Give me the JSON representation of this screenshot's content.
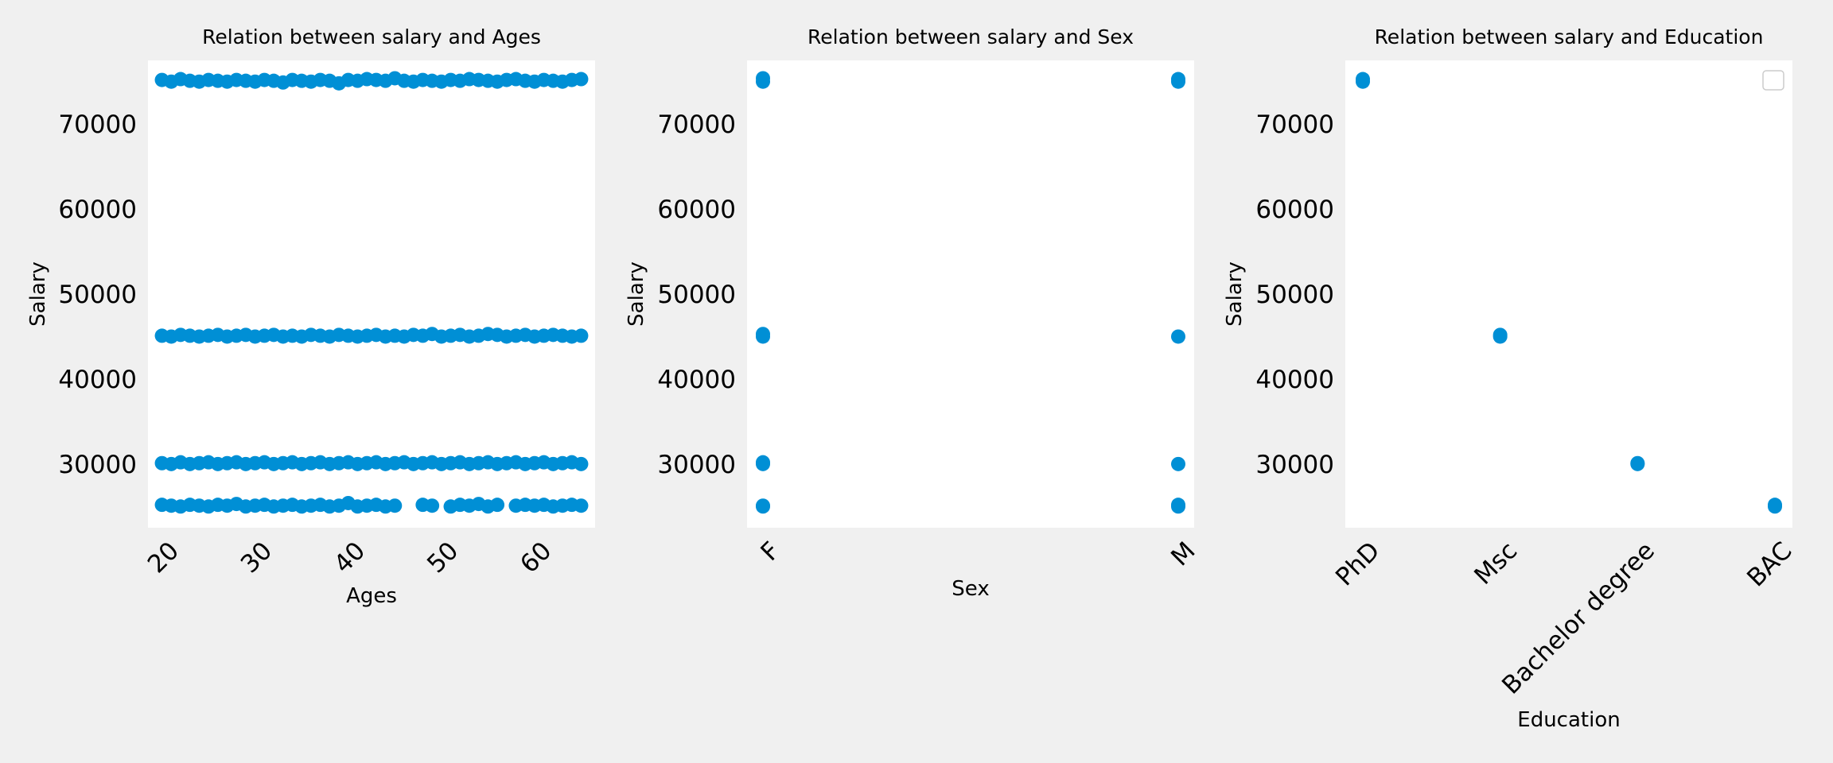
{
  "colors": {
    "figure_bg": "#f0f0f0",
    "plot_bg": "#ffffff",
    "marker": "#008fd5",
    "text": "#000000"
  },
  "chart_data": [
    {
      "type": "scatter",
      "title": "Relation between salary and Ages",
      "xlabel": "Ages",
      "ylabel": "Salary",
      "xlim": [
        18.5,
        66.5
      ],
      "ylim": [
        22500,
        77500
      ],
      "xticks": [
        20,
        30,
        40,
        50,
        60
      ],
      "yticks": [
        30000,
        40000,
        50000,
        60000,
        70000
      ],
      "grid": false,
      "series": [
        {
          "values_by_age": {
            "x": [
              20,
              21,
              22,
              23,
              24,
              25,
              26,
              27,
              28,
              29,
              30,
              31,
              32,
              33,
              34,
              35,
              36,
              37,
              38,
              39,
              40,
              41,
              42,
              43,
              44,
              45,
              46,
              47,
              48,
              49,
              50,
              51,
              52,
              53,
              54,
              55,
              56,
              57,
              58,
              59,
              60,
              61,
              62,
              63,
              64,
              65,
              20,
              21,
              22,
              23,
              24,
              25,
              26,
              27,
              28,
              29,
              30,
              31,
              32,
              33,
              34,
              35,
              36,
              37,
              38,
              39,
              40,
              41,
              42,
              43,
              44,
              45,
              46,
              47,
              48,
              49,
              50,
              51,
              52,
              53,
              54,
              55,
              56,
              57,
              58,
              59,
              60,
              61,
              62,
              63,
              64,
              65,
              20,
              21,
              22,
              23,
              24,
              25,
              26,
              27,
              28,
              29,
              30,
              31,
              32,
              33,
              34,
              35,
              36,
              37,
              38,
              39,
              40,
              41,
              42,
              43,
              44,
              45,
              46,
              47,
              48,
              49,
              50,
              51,
              52,
              53,
              54,
              55,
              56,
              57,
              58,
              59,
              60,
              61,
              62,
              63,
              64,
              65,
              20,
              21,
              22,
              23,
              24,
              25,
              26,
              27,
              28,
              29,
              30,
              31,
              32,
              33,
              34,
              35,
              36,
              37,
              38,
              39,
              40,
              41,
              42,
              43,
              44,
              45,
              48,
              49,
              51,
              52,
              53,
              54,
              55,
              56,
              58,
              59,
              60,
              61,
              62,
              63,
              64,
              65
            ],
            "y": [
              75200,
              75000,
              75300,
              75100,
              75000,
              75200,
              75100,
              75000,
              75200,
              75100,
              75000,
              75200,
              75100,
              74900,
              75200,
              75100,
              75000,
              75200,
              75100,
              74800,
              75200,
              75100,
              75300,
              75200,
              75100,
              75400,
              75100,
              75000,
              75200,
              75100,
              75000,
              75200,
              75100,
              75300,
              75200,
              75100,
              75000,
              75200,
              75300,
              75100,
              75000,
              75200,
              75100,
              75000,
              75200,
              75300,
              45100,
              45000,
              45200,
              45100,
              45000,
              45100,
              45200,
              45000,
              45100,
              45200,
              45000,
              45100,
              45200,
              45000,
              45100,
              45000,
              45200,
              45100,
              45000,
              45200,
              45100,
              45000,
              45100,
              45200,
              45000,
              45100,
              45000,
              45200,
              45100,
              45300,
              45000,
              45100,
              45200,
              45000,
              45100,
              45300,
              45200,
              45000,
              45100,
              45200,
              45000,
              45100,
              45200,
              45100,
              45000,
              45100,
              30100,
              30000,
              30200,
              30000,
              30100,
              30200,
              30000,
              30100,
              30200,
              30000,
              30100,
              30200,
              30000,
              30100,
              30200,
              30000,
              30100,
              30200,
              30000,
              30100,
              30200,
              30000,
              30100,
              30200,
              30000,
              30100,
              30200,
              30000,
              30100,
              30200,
              30000,
              30100,
              30200,
              30000,
              30100,
              30200,
              30000,
              30100,
              30200,
              30000,
              30100,
              30200,
              30000,
              30100,
              30200,
              30000,
              25200,
              25100,
              25000,
              25200,
              25100,
              25000,
              25200,
              25100,
              25300,
              25000,
              25100,
              25200,
              25000,
              25100,
              25200,
              25000,
              25100,
              25200,
              25000,
              25100,
              25400,
              25000,
              25100,
              25200,
              25000,
              25100,
              25200,
              25100,
              25000,
              25200,
              25100,
              25300,
              25000,
              25200,
              25100,
              25200,
              25100,
              25200,
              25000,
              25100,
              25200,
              25100
            ]
          }
        }
      ]
    },
    {
      "type": "scatter",
      "title": "Relation between salary and Sex",
      "xlabel": "Sex",
      "ylabel": "Salary",
      "categories": [
        "F",
        "M"
      ],
      "ylim": [
        22500,
        77500
      ],
      "yticks": [
        30000,
        40000,
        50000,
        60000,
        70000
      ],
      "grid": false,
      "points": {
        "x": [
          "F",
          "F",
          "F",
          "F",
          "F",
          "F",
          "F",
          "F",
          "M",
          "M",
          "M",
          "M",
          "M",
          "M"
        ],
        "y": [
          75000,
          75400,
          45000,
          45300,
          30000,
          30200,
          25000,
          25100,
          75000,
          75300,
          45000,
          30000,
          25000,
          25200
        ]
      }
    },
    {
      "type": "scatter",
      "title": "Relation between salary and Education",
      "xlabel": "Education",
      "ylabel": "Salary",
      "categories": [
        "PhD",
        "Msc",
        "Bachelor degree",
        "BAC"
      ],
      "ylim": [
        22500,
        77500
      ],
      "yticks": [
        30000,
        40000,
        50000,
        60000,
        70000
      ],
      "grid": false,
      "legend": "top-right",
      "points": {
        "x": [
          "PhD",
          "PhD",
          "Msc",
          "Msc",
          "Bachelor degree",
          "Bachelor degree",
          "BAC",
          "BAC"
        ],
        "y": [
          75000,
          75300,
          45000,
          45200,
          30000,
          30100,
          25000,
          25200
        ]
      }
    }
  ]
}
